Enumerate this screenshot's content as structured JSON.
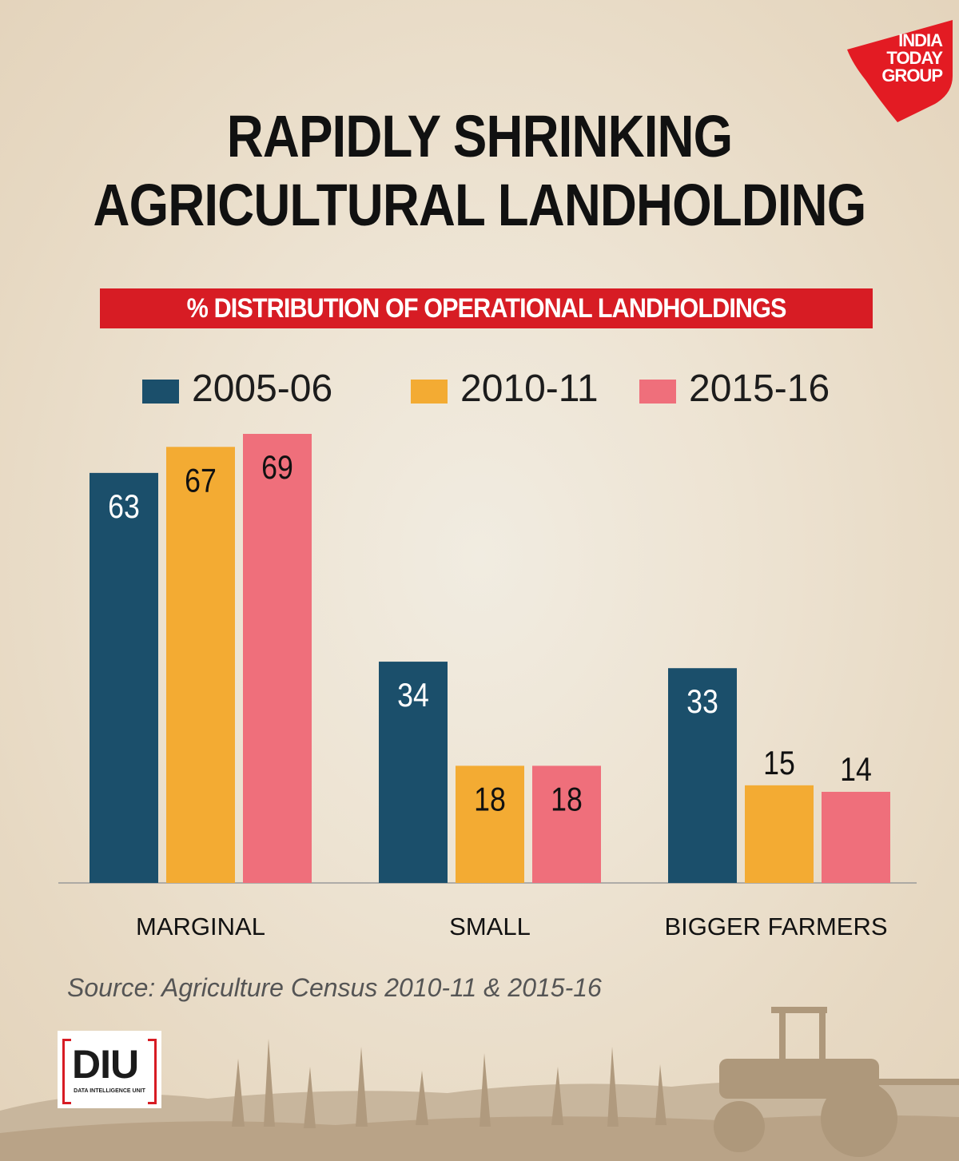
{
  "brand": {
    "logo_lines": [
      "INDIA",
      "TODAY",
      "GROUP"
    ],
    "logo_color": "#e31b23",
    "diu_text": "DIU",
    "diu_subtext": "DATA INTELLIGENCE UNIT"
  },
  "header": {
    "title_lines": [
      "RAPIDLY SHRINKING",
      "AGRICULTURAL LANDHOLDING"
    ],
    "subtitle": "% DISTRIBUTION OF OPERATIONAL LANDHOLDINGS"
  },
  "footer": {
    "source": "Source: Agriculture Census 2010-11 & 2015-16"
  },
  "chart_data": {
    "type": "bar",
    "title": "% DISTRIBUTION OF OPERATIONAL LANDHOLDINGS",
    "categories": [
      "MARGINAL",
      "SMALL",
      "BIGGER FARMERS"
    ],
    "series": [
      {
        "name": "2005-06",
        "color": "#1b4f6b",
        "values": [
          63,
          34,
          33
        ]
      },
      {
        "name": "2010-11",
        "color": "#f3ab33",
        "values": [
          67,
          18,
          15
        ]
      },
      {
        "name": "2015-16",
        "color": "#ef6f7b",
        "values": [
          69,
          18,
          14
        ]
      }
    ],
    "ylim": [
      0,
      69
    ],
    "grid": false,
    "legend_position": "top",
    "xlabel": "",
    "ylabel": ""
  }
}
